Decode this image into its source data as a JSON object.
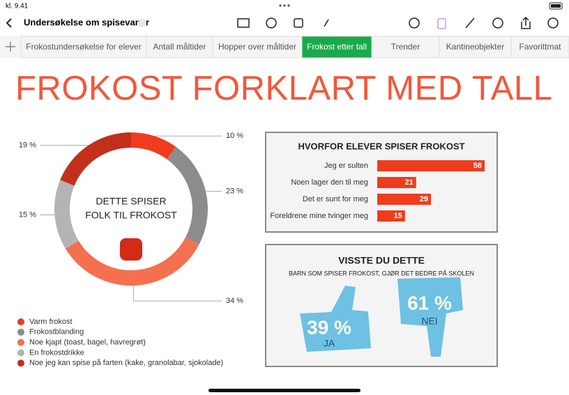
{
  "status": {
    "time": "kl. 9.41"
  },
  "toolbar": {
    "title": "Undersøkelse om spisevaner"
  },
  "tabs": [
    "Frokostundersøkelse for elever",
    "Antall måltider",
    "Hopper over måltider",
    "Frokost etter tall",
    "Trender",
    "Kantineobjekter",
    "Favorittmat"
  ],
  "active_tab": 3,
  "sheet_title": "FROKOST FORKLART MED TALL",
  "chart_data": [
    {
      "type": "donut",
      "center_label": [
        "DETTE SPISER",
        "FOLK TIL FROKOST"
      ],
      "categories": [
        "Varm frokost",
        "Frokostblanding",
        "Noe kjapt (toast, bagel, havregrøt)",
        "En frokostdrikke",
        "Noe jeg kan spise på farten (kake, granolabar, sjokolade)"
      ],
      "values": [
        10,
        23,
        34,
        15,
        19
      ],
      "value_labels": [
        "10 %",
        "23 %",
        "34 %",
        "15 %",
        "19 %"
      ],
      "colors": [
        "#f03c1e",
        "#8c8c8c",
        "#f5704e",
        "#b4b4b4",
        "#c2301c"
      ]
    },
    {
      "type": "bar",
      "title": "HVORFOR ELEVER SPISER FROKOST",
      "categories": [
        "Jeg er sulten",
        "Noen lager den til meg",
        "Det er sunt for meg",
        "Foreldrene mine tvinger meg"
      ],
      "values": [
        58,
        21,
        29,
        15
      ],
      "color": "#f03c1e"
    }
  ],
  "infographic": {
    "title": "VISSTE DU DETTE",
    "subtitle": "BARN SOM SPISER FROKOST, GJØR DET BEDRE PÅ SKOLEN",
    "items": [
      {
        "value_label": "39 %",
        "label": "JA"
      },
      {
        "value_label": "61 %",
        "label": "NEI"
      }
    ]
  }
}
